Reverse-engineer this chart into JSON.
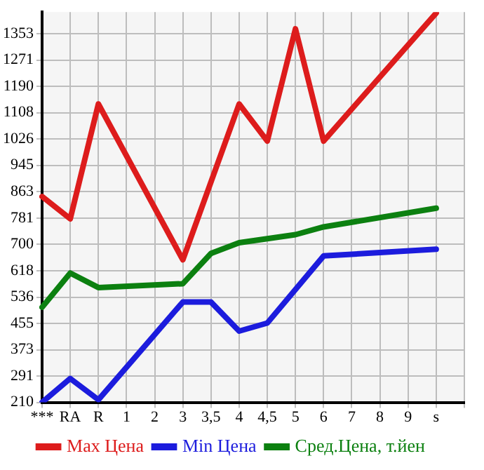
{
  "chart_data": {
    "type": "line",
    "categories": [
      "***",
      "RA",
      "R",
      "1",
      "2",
      "3",
      "3,5",
      "4",
      "4,5",
      "5",
      "6",
      "7",
      "8",
      "9",
      "s"
    ],
    "series": [
      {
        "name": "Max Цена",
        "color": "#dd1c1c",
        "values": [
          848,
          779,
          1135,
          null,
          null,
          652,
          null,
          1135,
          1020,
          1368,
          1020,
          null,
          null,
          null,
          1417
        ]
      },
      {
        "name": "Min Цена",
        "color": "#1c1cdd",
        "values": [
          210,
          284,
          218,
          null,
          null,
          521,
          521,
          431,
          456,
          null,
          664,
          null,
          null,
          null,
          685
        ]
      },
      {
        "name": "Сред.Цена, т.йен",
        "color": "#0c8010",
        "values": [
          505,
          611,
          566,
          null,
          null,
          578,
          672,
          705,
          null,
          730,
          754,
          null,
          null,
          null,
          812
        ]
      }
    ],
    "ylim": [
      210,
      1420
    ],
    "yticks": [
      210,
      291,
      373,
      455,
      536,
      618,
      700,
      781,
      863,
      945,
      1026,
      1108,
      1190,
      1271,
      1353
    ],
    "grid": true,
    "legend": "bottom",
    "marker": "none",
    "line_style": "solid"
  }
}
